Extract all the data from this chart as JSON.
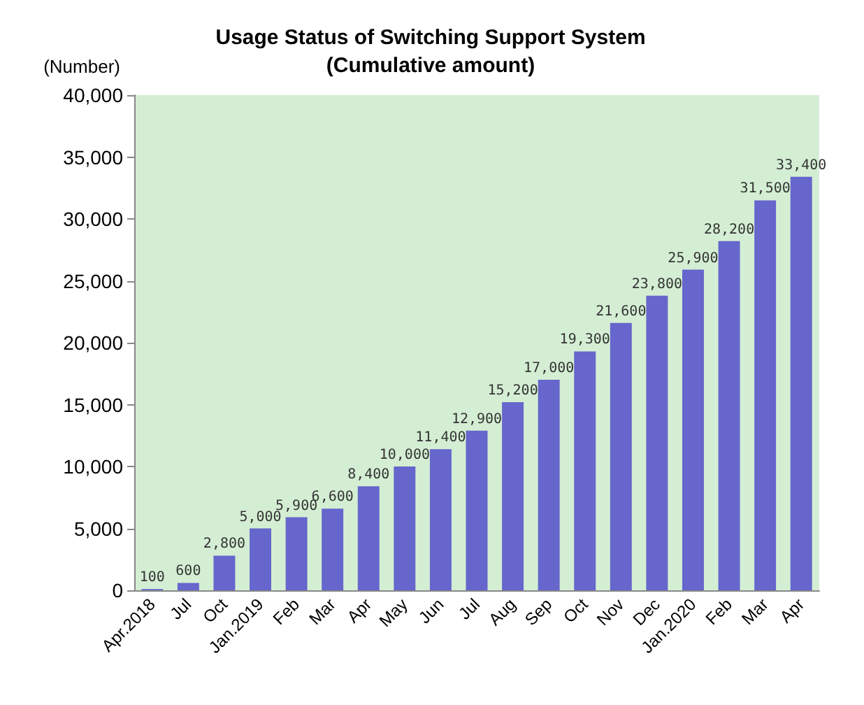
{
  "chart_data": {
    "type": "bar",
    "title": "Usage Status of Switching Support System\n(Cumulative amount)",
    "ylabel": "(Number)",
    "categories": [
      "Apr.2018",
      "Jul",
      "Oct",
      "Jan.2019",
      "Feb",
      "Mar",
      "Apr",
      "May",
      "Jun",
      "Jul",
      "Aug",
      "Sep",
      "Oct",
      "Nov",
      "Dec",
      "Jan.2020",
      "Feb",
      "Mar",
      "Apr"
    ],
    "values": [
      100,
      600,
      2800,
      5000,
      5900,
      6600,
      8400,
      10000,
      11400,
      12900,
      15200,
      17000,
      19300,
      21600,
      23800,
      25900,
      28200,
      31500,
      33400
    ],
    "value_labels": [
      "100",
      "600",
      "2,800",
      "5,000",
      "5,900",
      "6,600",
      "8,400",
      "10,000",
      "11,400",
      "12,900",
      "15,200",
      "17,000",
      "19,300",
      "21,600",
      "23,800",
      "25,900",
      "28,200",
      "31,500",
      "33,400"
    ],
    "color": "#6666cc",
    "ylim": [
      0,
      40000
    ],
    "yticks": [
      0,
      {
        "value": 5000,
        "label": "5,000"
      },
      {
        "value": 10000,
        "label": "10,000"
      },
      {
        "value": 15000,
        "label": "15,000"
      },
      {
        "value": 20000,
        "label": "20,000"
      },
      {
        "value": 25000,
        "label": "25,000"
      },
      {
        "value": 30000,
        "label": "30,000"
      },
      {
        "value": 35000,
        "label": "35,000"
      },
      {
        "value": 40000,
        "label": "40,000"
      }
    ],
    "grid": false
  }
}
